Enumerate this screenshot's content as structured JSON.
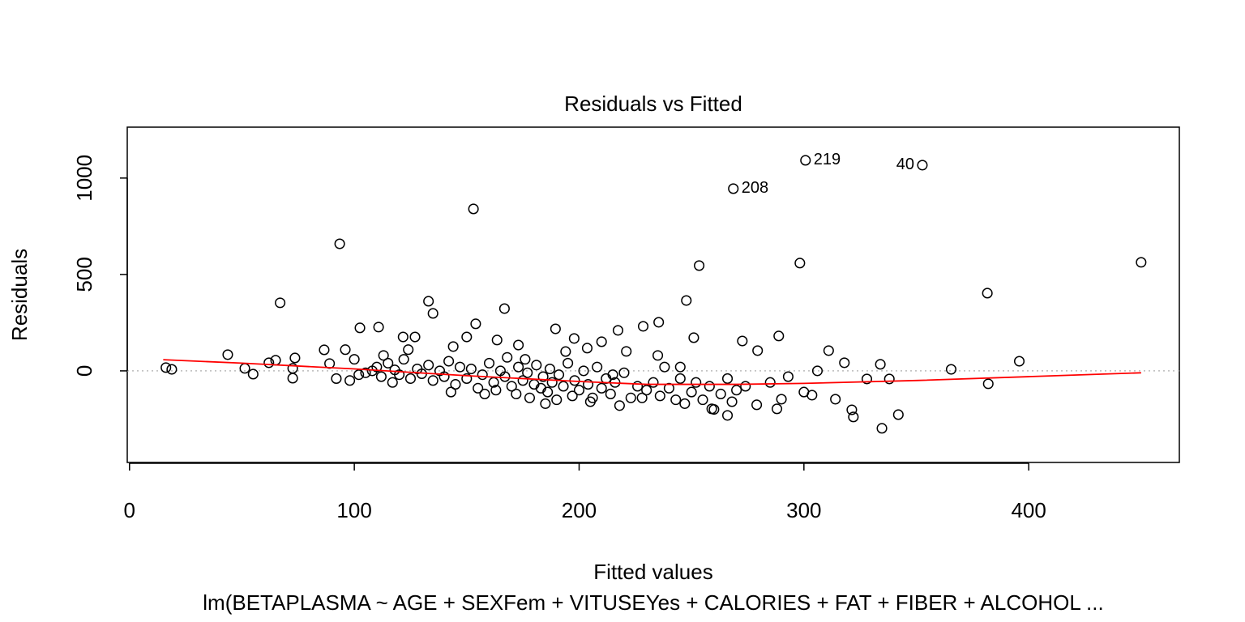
{
  "chart_data": {
    "type": "scatter",
    "title": "Residuals vs Fitted",
    "x_label": "Fitted values",
    "y_label": "Residuals",
    "subtitle": "lm(BETAPLASMA ~ AGE + SEXFem + VITUSEYes + CALORIES + FAT + FIBER + ALCOHOL ...",
    "xlim": [
      -1,
      467
    ],
    "ylim": [
      -475,
      1264
    ],
    "xticks": [
      0,
      100,
      200,
      300,
      400
    ],
    "yticks": [
      0,
      500,
      1000
    ],
    "reference_line": 0,
    "series": [
      {
        "type": "scatter",
        "color": "#000000",
        "x": [
          16.2,
          18.8,
          43.7,
          51.3,
          55,
          62,
          65,
          67,
          72.6,
          72.6,
          73.6,
          86.6,
          89,
          93.5,
          102.5,
          110.8,
          153,
          268.6,
          300.7,
          352.7,
          253.4,
          298.2,
          450,
          381.6,
          133,
          135,
          166.8,
          247.7,
          235.4,
          228.5,
          217.3,
          189.5,
          251,
          272.6,
          288.8,
          279.4,
          311,
          365.5,
          395.8,
          382,
          342,
          334.7,
          321.3,
          322,
          279,
          288,
          290,
          259,
          266,
          303.6,
          314,
          334,
          328,
          338,
          318,
          306,
          150,
          154,
          163.5,
          121.7,
          127,
          144,
          173,
          203.6,
          210,
          197.8,
          221,
          105,
          110,
          112,
          115,
          118,
          120,
          122,
          125,
          128,
          130,
          133,
          135,
          138,
          140,
          142,
          145,
          147,
          150,
          152,
          155,
          157,
          160,
          162,
          163,
          165,
          167,
          168,
          170,
          172,
          173,
          175,
          177,
          178,
          180,
          181,
          183,
          184,
          186,
          187,
          188,
          190,
          191,
          193,
          195,
          197,
          198,
          200,
          202,
          204,
          206,
          208,
          210,
          212,
          214,
          216,
          218,
          220,
          223,
          226,
          230,
          233,
          236,
          238,
          240,
          243,
          245,
          247,
          250,
          252,
          255,
          258,
          260,
          263,
          266,
          268,
          270,
          274,
          285,
          293,
          300,
          96,
          98,
          100,
          102,
          108,
          92,
          113,
          117,
          124,
          143,
          158,
          176,
          185,
          194,
          205,
          215,
          228,
          235,
          245
        ],
        "y": [
          17,
          8,
          84,
          13,
          -17,
          42,
          55,
          353,
          13,
          -38,
          67,
          109,
          38,
          659,
          223,
          227,
          840,
          945,
          1092,
          1067,
          546,
          559,
          563,
          403,
          361,
          298,
          323,
          365,
          252,
          231,
          210,
          218,
          172,
          155,
          181,
          105,
          105,
          8,
          50,
          -67,
          -227,
          -298,
          -202,
          -239,
          -176,
          -197,
          -147,
          -197,
          -231,
          -126,
          -147,
          34,
          -42,
          -42,
          42,
          0,
          176,
          244,
          160,
          176,
          176,
          126,
          134,
          118,
          151,
          168,
          101,
          -10,
          20,
          -30,
          40,
          5,
          -20,
          60,
          -40,
          10,
          -15,
          30,
          -50,
          0,
          -30,
          50,
          -70,
          20,
          -40,
          10,
          -90,
          -20,
          40,
          -60,
          -100,
          0,
          -30,
          70,
          -80,
          -120,
          20,
          -50,
          -10,
          -140,
          -70,
          30,
          -90,
          -30,
          -110,
          10,
          -60,
          -150,
          -20,
          -80,
          40,
          -130,
          -50,
          -100,
          0,
          -70,
          -140,
          20,
          -90,
          -40,
          -120,
          -60,
          -180,
          -10,
          -140,
          -80,
          -100,
          -60,
          -130,
          20,
          -90,
          -150,
          -40,
          -170,
          -110,
          -60,
          -150,
          -80,
          -200,
          -120,
          -40,
          -160,
          -100,
          -80,
          -60,
          -30,
          -110,
          110,
          -50,
          60,
          -20,
          0,
          -40,
          80,
          -60,
          110,
          -110,
          -120,
          60,
          -170,
          100,
          -160,
          -20,
          -140,
          80,
          20
        ]
      },
      {
        "type": "line",
        "color": "#ff0000",
        "x": [
          15,
          50,
          100,
          150,
          200,
          230,
          270,
          300,
          350,
          400,
          450
        ],
        "y": [
          58,
          40,
          10,
          -25,
          -55,
          -70,
          -70,
          -65,
          -50,
          -30,
          -10
        ]
      }
    ],
    "annotations": [
      {
        "text": "208",
        "x": 268.6,
        "y": 945,
        "position": "right"
      },
      {
        "text": "219",
        "x": 300.7,
        "y": 1092,
        "position": "right"
      },
      {
        "text": "40",
        "x": 352.7,
        "y": 1067,
        "position": "left"
      }
    ]
  }
}
